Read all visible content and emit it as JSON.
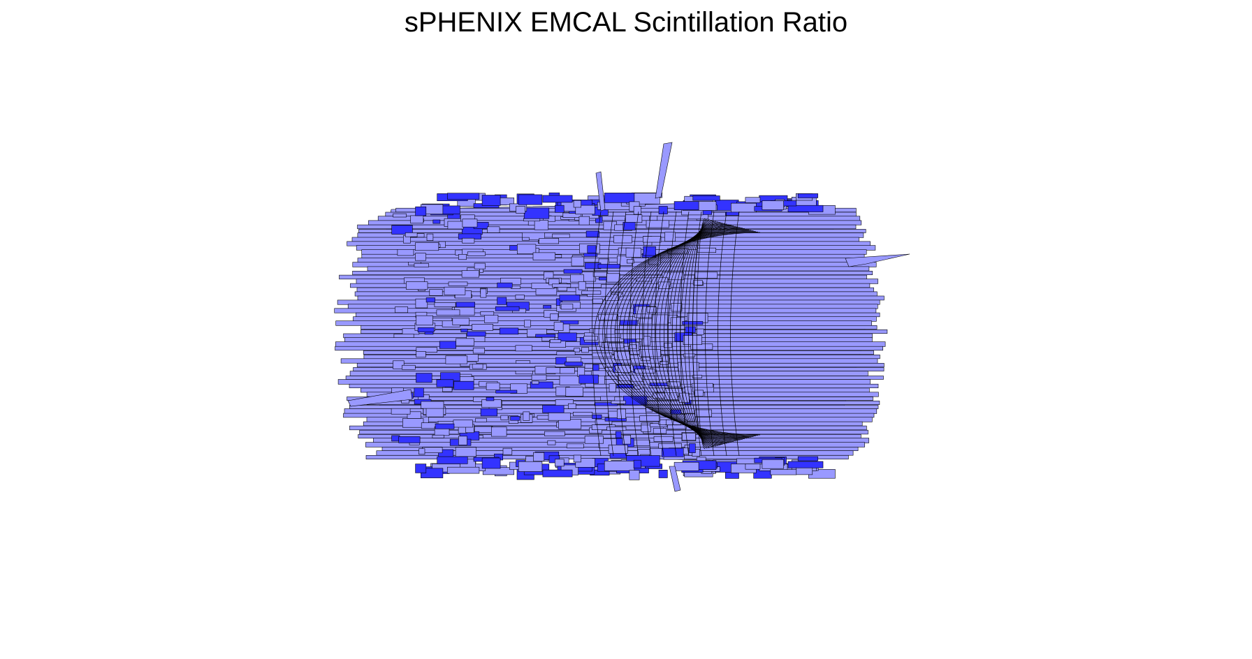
{
  "chart_data": {
    "type": "lego",
    "title": "sPHENIX EMCAL Scintillation Ratio",
    "axes_visible": false,
    "grid": false,
    "legend": "none",
    "colors": {
      "bar_top": "#9999ff",
      "bar_side": "#3333ff",
      "edge": "#000000",
      "background": "#ffffff"
    }
  }
}
